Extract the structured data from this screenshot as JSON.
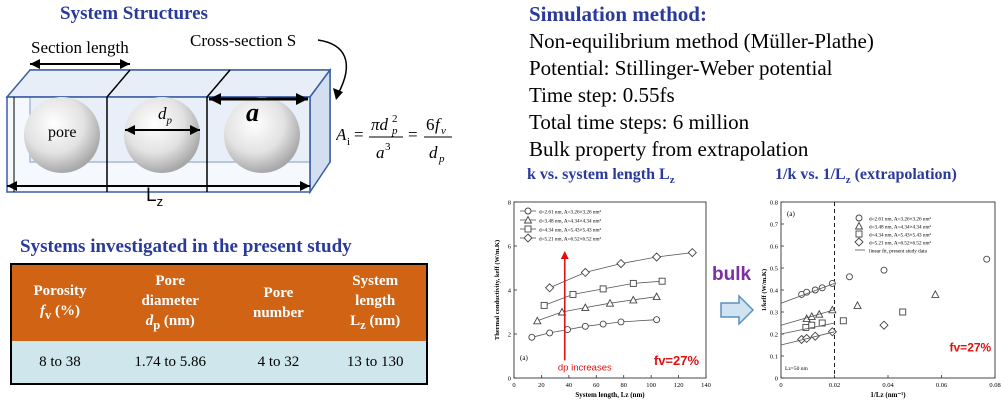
{
  "system_structures": {
    "title": "System Structures",
    "section_length_label": "Section length",
    "cross_section_label": "Cross-section S",
    "pore_label": "pore",
    "dp_label": "d",
    "dp_sub": "p",
    "a_label": "a",
    "lz_label": "L",
    "lz_sub": "z",
    "formula": "A_i = π d_p^2 / a^3 = 6 f_v / d_p"
  },
  "simulation": {
    "title": "Simulation method:",
    "lines": [
      "Non-equilibrium method (Müller-Plathe)",
      "Potential: Stillinger-Weber potential",
      "Time step: 0.55fs",
      "Total time steps: 6 million",
      "Bulk property from extrapolation"
    ]
  },
  "systems_table": {
    "title": "Systems investigated in the present study",
    "headers": [
      [
        "Porosity",
        "f_v (%)"
      ],
      [
        "Pore",
        "diameter",
        "d_p (nm)"
      ],
      [
        "Pore",
        "number"
      ],
      [
        "System",
        "length",
        "L_z (nm)"
      ]
    ],
    "row": [
      "8 to 38",
      "1.74 to 5.86",
      "4 to 32",
      "13 to 130"
    ]
  },
  "bulk_label": "bulk",
  "chart_data": [
    {
      "type": "line",
      "title": "k vs. system length L_z",
      "panel_label": "(a)",
      "xlabel": "System length, L_z (nm)",
      "ylabel": "Thermal conductivity, k_eff (W/m.K)",
      "xlim": [
        0,
        140
      ],
      "ylim": [
        0,
        8
      ],
      "xticks": [
        0,
        20,
        40,
        60,
        80,
        100,
        120,
        140
      ],
      "yticks": [
        0,
        2,
        4,
        6,
        8
      ],
      "annotation": "d_p increases",
      "porosity_label": "f_v=27%",
      "series": [
        {
          "name": "d_p=2.61 nm, A_c=3.26x3.26 nm^2",
          "marker": "circle",
          "x": [
            13,
            26,
            39,
            52,
            65,
            78,
            104
          ],
          "y": [
            1.85,
            2.05,
            2.2,
            2.35,
            2.45,
            2.55,
            2.65
          ]
        },
        {
          "name": "d_p=3.48 nm, A_c=4.34x4.34 nm^2",
          "marker": "triangle",
          "x": [
            17,
            35,
            52,
            70,
            87,
            104
          ],
          "y": [
            2.6,
            3.0,
            3.2,
            3.4,
            3.55,
            3.7
          ]
        },
        {
          "name": "d_p=4.34 nm, A_c=5.43x5.43 nm^2",
          "marker": "square",
          "x": [
            22,
            43,
            65,
            87,
            108
          ],
          "y": [
            3.3,
            3.8,
            4.05,
            4.3,
            4.4
          ]
        },
        {
          "name": "d_p=5.21 nm, A_c=6.52x6.52 nm^2",
          "marker": "diamond",
          "x": [
            26,
            52,
            78,
            104,
            130
          ],
          "y": [
            4.1,
            4.8,
            5.2,
            5.5,
            5.7
          ]
        }
      ]
    },
    {
      "type": "scatter",
      "title": "1/k vs. 1/L_z (extrapolation)",
      "panel_label": "(a)",
      "xlabel": "1/L_z (nm^-1)",
      "ylabel": "1/k_eff (W/m.K)",
      "xlim": [
        0,
        0.08
      ],
      "ylim": [
        0,
        0.8
      ],
      "xticks": [
        0,
        0.02,
        0.04,
        0.06,
        0.08
      ],
      "yticks": [
        0,
        0.1,
        0.2,
        0.3,
        0.4,
        0.5,
        0.6,
        0.7,
        0.8
      ],
      "dashed_line_x": 0.02,
      "lz_note": "L_z=50 nm",
      "porosity_label": "f_v=27%",
      "series": [
        {
          "name": "d_p=2.61 nm, A_c=3.26x3.26 nm^2",
          "marker": "circle",
          "x": [
            0.0077,
            0.0096,
            0.0128,
            0.0154,
            0.0192,
            0.0256,
            0.0385,
            0.0769
          ],
          "y": [
            0.38,
            0.39,
            0.4,
            0.41,
            0.43,
            0.46,
            0.49,
            0.54
          ]
        },
        {
          "name": "d_p=3.48 nm, A_c=4.34x4.34 nm^2",
          "marker": "triangle",
          "x": [
            0.0096,
            0.0115,
            0.0143,
            0.0192,
            0.0286,
            0.0577
          ],
          "y": [
            0.27,
            0.28,
            0.29,
            0.31,
            0.33,
            0.38
          ]
        },
        {
          "name": "d_p=4.34 nm, A_c=5.43x5.43 nm^2",
          "marker": "square",
          "x": [
            0.0093,
            0.0115,
            0.0154,
            0.0233,
            0.0455
          ],
          "y": [
            0.23,
            0.24,
            0.25,
            0.26,
            0.3
          ]
        },
        {
          "name": "d_p=5.21 nm, A_c=6.52x6.52 nm^2",
          "marker": "diamond",
          "x": [
            0.0077,
            0.0096,
            0.0128,
            0.0192,
            0.0385
          ],
          "y": [
            0.175,
            0.18,
            0.19,
            0.21,
            0.24
          ]
        },
        {
          "name": "linear fit, present study data",
          "marker": "line",
          "lines": [
            {
              "x": [
                0,
                0.02
              ],
              "y": [
                0.34,
                0.43
              ]
            },
            {
              "x": [
                0,
                0.02
              ],
              "y": [
                0.24,
                0.31
              ]
            },
            {
              "x": [
                0,
                0.02
              ],
              "y": [
                0.2,
                0.25
              ]
            },
            {
              "x": [
                0,
                0.02
              ],
              "y": [
                0.15,
                0.21
              ]
            }
          ]
        }
      ]
    }
  ]
}
